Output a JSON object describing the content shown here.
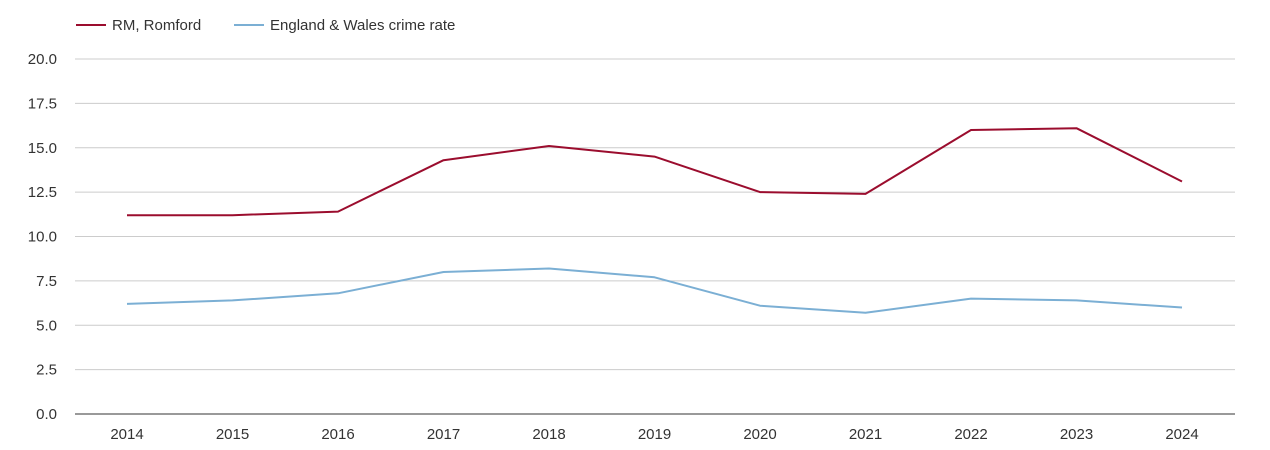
{
  "chart_data": {
    "type": "line",
    "title": "",
    "xlabel": "",
    "ylabel": "",
    "x": [
      "2014",
      "2015",
      "2016",
      "2017",
      "2018",
      "2019",
      "2020",
      "2021",
      "2022",
      "2023",
      "2024"
    ],
    "y_ticks": [
      "0.0",
      "2.5",
      "5.0",
      "7.5",
      "10.0",
      "12.5",
      "15.0",
      "17.5",
      "20.0"
    ],
    "ylim": [
      0,
      20
    ],
    "grid": "horizontal",
    "legend_position": "top-left",
    "series": [
      {
        "name": "RM, Romford",
        "color": "#9b0d2e",
        "values": [
          11.2,
          11.2,
          11.4,
          14.3,
          15.1,
          14.5,
          12.5,
          12.4,
          16.0,
          16.1,
          13.1
        ]
      },
      {
        "name": "England & Wales crime rate",
        "color": "#7bafd4",
        "values": [
          6.2,
          6.4,
          6.8,
          8.0,
          8.2,
          7.7,
          6.1,
          5.7,
          6.5,
          6.4,
          6.0
        ]
      }
    ]
  }
}
